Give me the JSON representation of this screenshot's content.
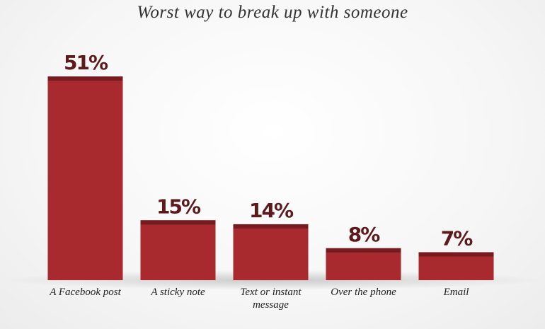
{
  "chart_data": {
    "type": "bar",
    "title": "Worst way to break up with someone",
    "categories": [
      "A Facebook post",
      "A sticky note",
      "Text or instant message",
      "Over the phone",
      "Email"
    ],
    "values": [
      51,
      15,
      14,
      8,
      7
    ],
    "value_labels": [
      "51%",
      "15%",
      "14%",
      "8%",
      "7%"
    ],
    "color": "#a8292e"
  }
}
